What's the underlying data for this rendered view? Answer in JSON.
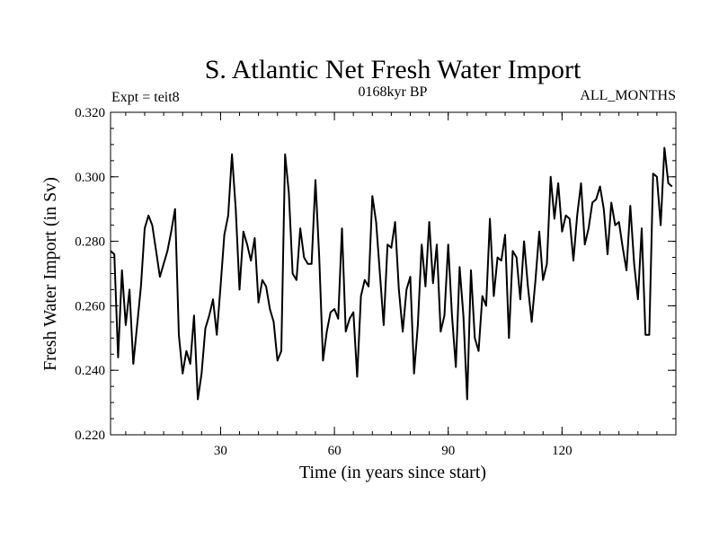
{
  "chart_data": {
    "type": "line",
    "title": "S. Atlantic Net Fresh Water Import",
    "subtitle_left": "Expt = teit8",
    "subtitle_center": "0168kyr BP",
    "subtitle_right": "ALL_MONTHS",
    "xlabel": "Time (in years since start)",
    "ylabel": "Fresh Water Import (in Sv)",
    "xlim": [
      1,
      150
    ],
    "ylim": [
      0.22,
      0.32
    ],
    "x_ticks": [
      30,
      60,
      90,
      120
    ],
    "x_tick_labels": [
      "30",
      "60",
      "90",
      "120"
    ],
    "y_ticks": [
      0.22,
      0.24,
      0.26,
      0.28,
      0.3,
      0.32
    ],
    "y_tick_labels": [
      "0.220",
      "0.240",
      "0.260",
      "0.280",
      "0.300",
      "0.320"
    ],
    "line_color": "#000000",
    "series": [
      {
        "name": "Fresh Water Import",
        "x_start": 1,
        "values": [
          0.277,
          0.276,
          0.244,
          0.271,
          0.254,
          0.265,
          0.242,
          0.254,
          0.266,
          0.284,
          0.288,
          0.285,
          0.277,
          0.269,
          0.273,
          0.277,
          0.283,
          0.29,
          0.251,
          0.239,
          0.246,
          0.242,
          0.257,
          0.231,
          0.239,
          0.253,
          0.257,
          0.262,
          0.251,
          0.266,
          0.282,
          0.288,
          0.307,
          0.29,
          0.265,
          0.283,
          0.279,
          0.274,
          0.281,
          0.261,
          0.268,
          0.266,
          0.259,
          0.255,
          0.243,
          0.246,
          0.307,
          0.295,
          0.27,
          0.268,
          0.284,
          0.275,
          0.273,
          0.273,
          0.299,
          0.275,
          0.243,
          0.252,
          0.258,
          0.259,
          0.256,
          0.284,
          0.252,
          0.256,
          0.258,
          0.238,
          0.263,
          0.268,
          0.266,
          0.294,
          0.286,
          0.27,
          0.254,
          0.279,
          0.278,
          0.286,
          0.265,
          0.252,
          0.265,
          0.269,
          0.239,
          0.254,
          0.279,
          0.266,
          0.286,
          0.267,
          0.279,
          0.252,
          0.257,
          0.279,
          0.257,
          0.241,
          0.272,
          0.257,
          0.231,
          0.271,
          0.25,
          0.246,
          0.263,
          0.26,
          0.287,
          0.263,
          0.275,
          0.274,
          0.282,
          0.25,
          0.277,
          0.275,
          0.262,
          0.28,
          0.266,
          0.255,
          0.268,
          0.283,
          0.268,
          0.273,
          0.3,
          0.287,
          0.298,
          0.283,
          0.288,
          0.287,
          0.274,
          0.288,
          0.298,
          0.279,
          0.284,
          0.292,
          0.293,
          0.297,
          0.29,
          0.276,
          0.292,
          0.285,
          0.286,
          0.278,
          0.271,
          0.291,
          0.273,
          0.262,
          0.284,
          0.251,
          0.251,
          0.301,
          0.3,
          0.285,
          0.309,
          0.298,
          0.297
        ]
      }
    ]
  }
}
